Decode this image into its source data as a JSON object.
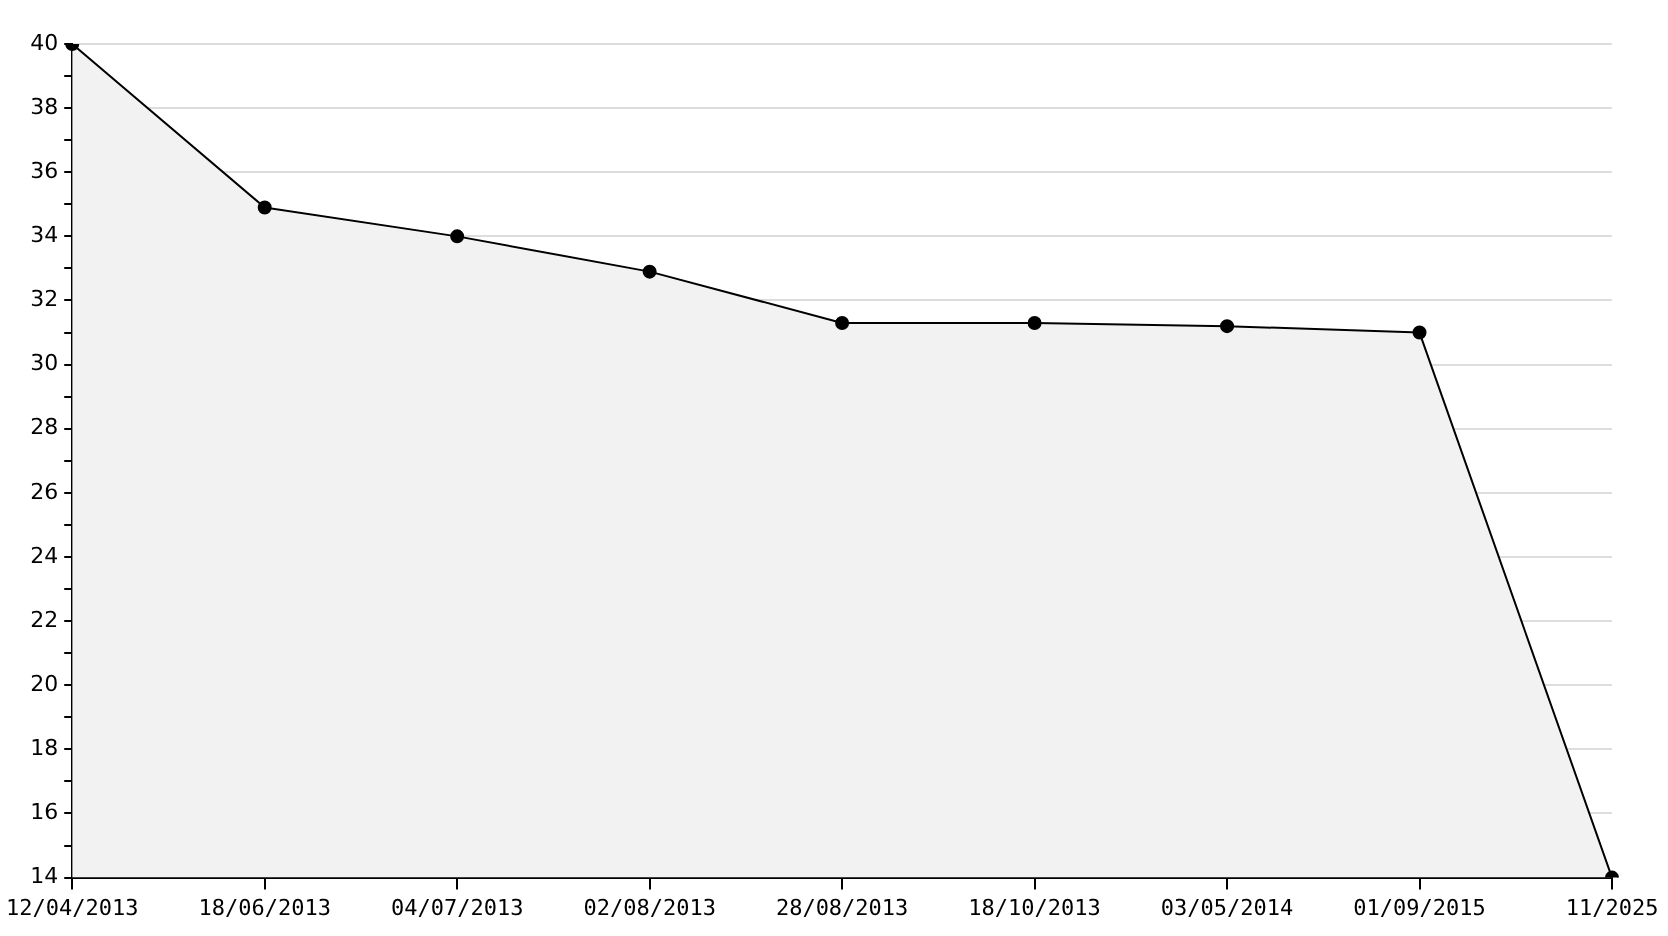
{
  "chart_data": {
    "type": "area",
    "categories": [
      "12/04/2013",
      "18/06/2013",
      "04/07/2013",
      "02/08/2013",
      "28/08/2013",
      "18/10/2013",
      "03/05/2014",
      "01/09/2015",
      "11/2025"
    ],
    "series": [
      {
        "color": "#000000",
        "values": [
          40,
          34.9,
          34.0,
          32.9,
          31.3,
          31.3,
          31.2,
          31.0,
          14
        ]
      }
    ],
    "ylim": [
      14,
      40
    ],
    "yticks": [
      14,
      {
        "value": 15,
        "label": null
      },
      16,
      {
        "value": 17,
        "label": null
      },
      18,
      {
        "value": 19,
        "label": null
      },
      20,
      {
        "value": 21,
        "label": null
      },
      22,
      {
        "value": 23,
        "label": null
      },
      24,
      {
        "value": 25,
        "label": null
      },
      26,
      {
        "value": 27,
        "label": null
      },
      28,
      {
        "value": 29,
        "label": null
      },
      30,
      {
        "value": 31,
        "label": null
      },
      32,
      {
        "value": 33,
        "label": null
      },
      34,
      {
        "value": 35,
        "label": null
      },
      36,
      {
        "value": 37,
        "label": null
      },
      38,
      {
        "value": 39,
        "label": null
      },
      40
    ],
    "grid": "y",
    "legend": false,
    "marker": "circle",
    "line_style": "solid"
  }
}
